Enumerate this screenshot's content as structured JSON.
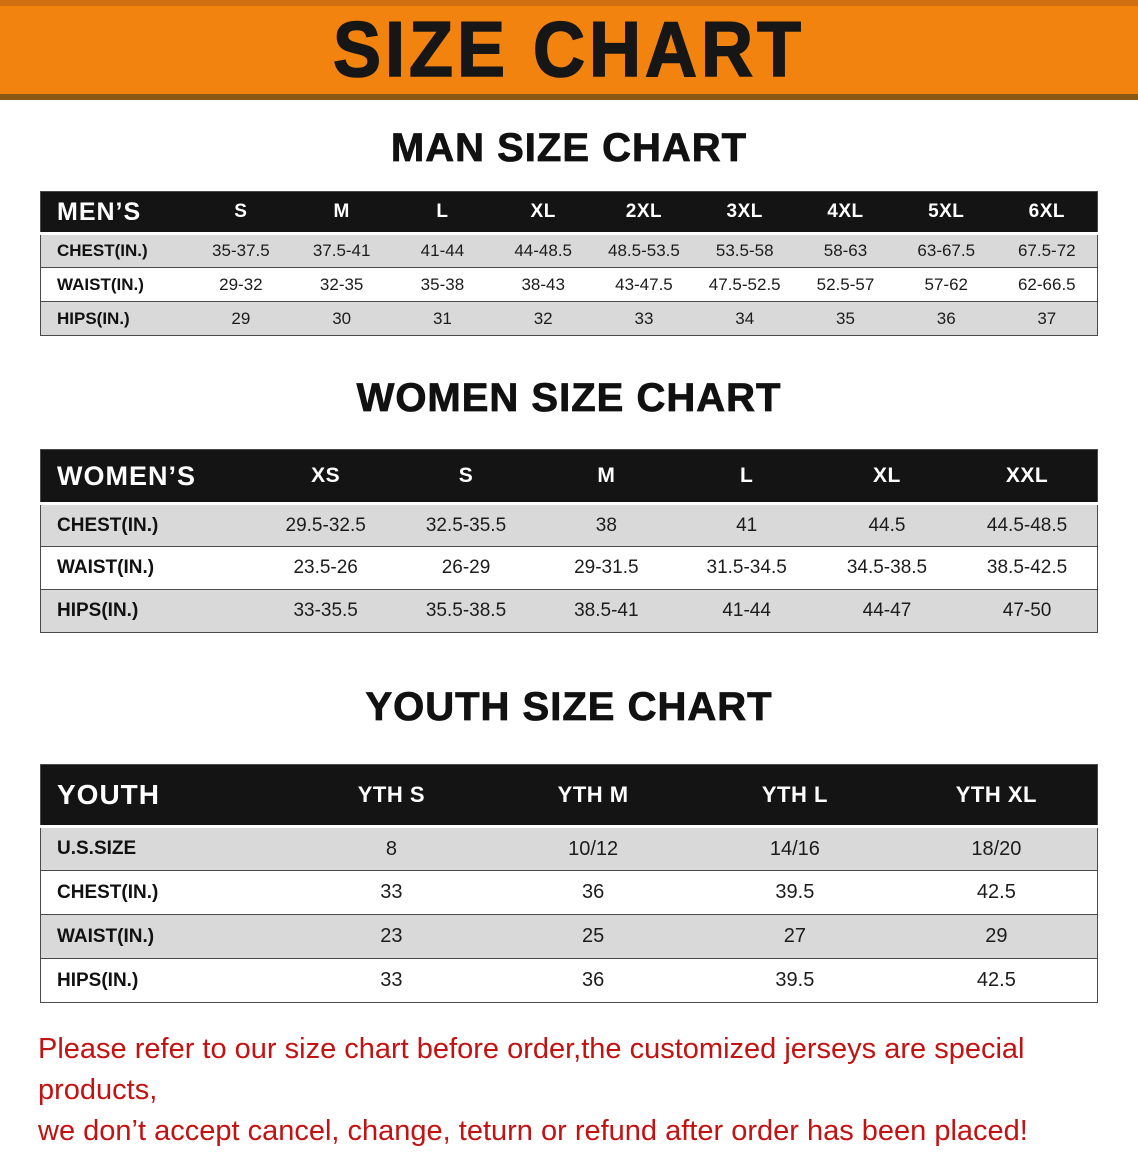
{
  "banner": {
    "title": "SIZE CHART"
  },
  "colors": {
    "banner_bg": "#f2830f",
    "banner_text": "#161616",
    "header_bg": "#141414",
    "header_text": "#ffffff",
    "row_shade": "#d9d9d9",
    "row_plain": "#ffffff",
    "notice_red": "#c21212",
    "border": "#4a4a4a"
  },
  "sections": [
    {
      "id": "men",
      "heading": "MAN SIZE CHART",
      "table": {
        "corner_label": "MEN’S",
        "columns": [
          "S",
          "M",
          "L",
          "XL",
          "2XL",
          "3XL",
          "4XL",
          "5XL",
          "6XL"
        ],
        "rows": [
          {
            "label": "CHEST(IN.)",
            "values": [
              "35-37.5",
              "37.5-41",
              "41-44",
              "44-48.5",
              "48.5-53.5",
              "53.5-58",
              "58-63",
              "63-67.5",
              "67.5-72"
            ]
          },
          {
            "label": "WAIST(IN.)",
            "values": [
              "29-32",
              "32-35",
              "35-38",
              "38-43",
              "43-47.5",
              "47.5-52.5",
              "52.5-57",
              "57-62",
              "62-66.5"
            ]
          },
          {
            "label": "HIPS(IN.)",
            "values": [
              "29",
              "30",
              "31",
              "32",
              "33",
              "34",
              "35",
              "36",
              "37"
            ]
          }
        ]
      }
    },
    {
      "id": "women",
      "heading": "WOMEN SIZE CHART",
      "table": {
        "corner_label": "WOMEN’S",
        "columns": [
          "XS",
          "S",
          "M",
          "L",
          "XL",
          "XXL"
        ],
        "rows": [
          {
            "label": "CHEST(IN.)",
            "values": [
              "29.5-32.5",
              "32.5-35.5",
              "38",
              "41",
              "44.5",
              "44.5-48.5"
            ]
          },
          {
            "label": "WAIST(IN.)",
            "values": [
              "23.5-26",
              "26-29",
              "29-31.5",
              "31.5-34.5",
              "34.5-38.5",
              "38.5-42.5"
            ]
          },
          {
            "label": "HIPS(IN.)",
            "values": [
              "33-35.5",
              "35.5-38.5",
              "38.5-41",
              "41-44",
              "44-47",
              "47-50"
            ]
          }
        ]
      }
    },
    {
      "id": "youth",
      "heading": "YOUTH SIZE CHART",
      "table": {
        "corner_label": "YOUTH",
        "columns": [
          "YTH S",
          "YTH M",
          "YTH L",
          "YTH XL"
        ],
        "rows": [
          {
            "label": "U.S.SIZE",
            "values": [
              "8",
              "10/12",
              "14/16",
              "18/20"
            ]
          },
          {
            "label": "CHEST(IN.)",
            "values": [
              "33",
              "36",
              "39.5",
              "42.5"
            ]
          },
          {
            "label": "WAIST(IN.)",
            "values": [
              "23",
              "25",
              "27",
              "29"
            ]
          },
          {
            "label": "HIPS(IN.)",
            "values": [
              "33",
              "36",
              "39.5",
              "42.5"
            ]
          }
        ]
      }
    }
  ],
  "footer": {
    "lines": [
      "Please refer to our size chart before order,the customized jerseys are special products,",
      "we don’t accept cancel, change, teturn or refund after order has been placed!"
    ]
  }
}
